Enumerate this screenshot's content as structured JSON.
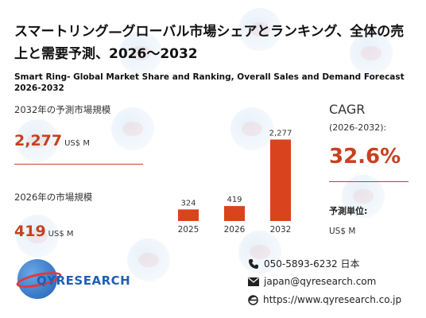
{
  "title_ja": "スマートリング—グローバル市場シェアとランキング、全体の売上と需要予測、2026〜2032",
  "title_en": "Smart Ring- Global Market Share and Ranking, Overall Sales and Demand Forecast 2026-2032",
  "forecast": {
    "label": "2032年の予測市場規模",
    "value": "2,277",
    "unit": "US$ M"
  },
  "current": {
    "label": "2026年の市場規模",
    "value": "419",
    "unit": "US$ M"
  },
  "cagr": {
    "title": "CAGR",
    "range": "(2026-2032):",
    "value": "32.6%"
  },
  "unit_info": {
    "heading": "予測単位:",
    "value": "US$ M"
  },
  "chart_data": {
    "type": "bar",
    "categories": [
      "2025",
      "2026",
      "2032"
    ],
    "values": [
      324,
      419,
      2277
    ],
    "data_labels": [
      "324",
      "419",
      "2,277"
    ],
    "bar_color": "#d9431e",
    "ylim": [
      0,
      2400
    ],
    "grid": false
  },
  "logo": {
    "text": "QYRESEARCH"
  },
  "contacts": {
    "phone": "050-5893-6232 日本",
    "email": "japan@qyresearch.com",
    "web": "https://www.qyresearch.co.jp"
  },
  "icons": [
    "phone-icon",
    "email-icon",
    "web-icon"
  ]
}
